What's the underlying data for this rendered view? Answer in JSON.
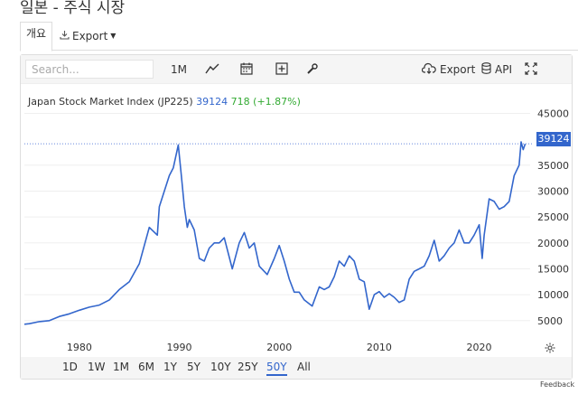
{
  "page": {
    "title": "일본 - 주식 시장"
  },
  "tabs": {
    "overview": "개요",
    "export": "Export"
  },
  "toolbar": {
    "search_placeholder": "Search...",
    "interval": "1M",
    "export": "Export",
    "api": "API"
  },
  "icons": {
    "line": "line-chart-icon",
    "calendar": "calendar-icon",
    "add": "plus-box-icon",
    "settings": "wrench-icon",
    "cloud": "cloud-download-icon",
    "db": "database-icon",
    "fullscreen": "fullscreen-icon",
    "gear": "gear-icon"
  },
  "legend": {
    "name": "Japan Stock Market Index (JP225)",
    "value": "39124",
    "change": "718 (+1.87%)"
  },
  "last_value_label": "39124",
  "range_buttons": [
    "1D",
    "1W",
    "1M",
    "6M",
    "1Y",
    "5Y",
    "10Y",
    "25Y",
    "50Y",
    "All"
  ],
  "active_range": "50Y",
  "feedback": "Feedback",
  "colors": {
    "line": "#3366cc",
    "change": "#33aa33"
  },
  "chart_data": {
    "type": "line",
    "series": [
      {
        "name": "Japan Stock Market Index (JP225)",
        "x": [
          1974.5,
          1975,
          1976,
          1977,
          1978,
          1979,
          1980,
          1981,
          1982,
          1983,
          1984,
          1985,
          1986,
          1987,
          1987.8,
          1988,
          1989,
          1989.4,
          1989.9,
          1990.2,
          1990.5,
          1990.8,
          1991,
          1991.5,
          1992,
          1992.5,
          1993,
          1993.5,
          1994,
          1994.5,
          1995.3,
          1996,
          1996.5,
          1997,
          1997.5,
          1998,
          1998.8,
          1999.5,
          2000,
          2000.5,
          2001,
          2001.5,
          2002,
          2002.5,
          2003.3,
          2004,
          2004.5,
          2005,
          2005.5,
          2006,
          2006.5,
          2007,
          2007.5,
          2008,
          2008.5,
          2009,
          2009.5,
          2010,
          2010.5,
          2011,
          2011.5,
          2012,
          2012.5,
          2013,
          2013.5,
          2014,
          2014.5,
          2015,
          2015.5,
          2016,
          2016.5,
          2017,
          2017.5,
          2018,
          2018.5,
          2019,
          2019.5,
          2020,
          2020.3,
          2020.5,
          2021,
          2021.5,
          2022,
          2022.5,
          2023,
          2023.5,
          2024,
          2024.2,
          2024.4,
          2024.6
        ],
        "y": [
          4300,
          4400,
          4800,
          5000,
          5800,
          6300,
          7000,
          7600,
          8000,
          9000,
          11000,
          12500,
          16000,
          23000,
          21500,
          27000,
          33000,
          34500,
          38900,
          33000,
          27000,
          23000,
          24500,
          22500,
          17000,
          16500,
          19000,
          20000,
          20000,
          21000,
          15000,
          20000,
          22000,
          19000,
          20000,
          15500,
          13900,
          17000,
          19500,
          16500,
          13000,
          10500,
          10500,
          9000,
          7800,
          11500,
          11000,
          11500,
          13500,
          16500,
          15500,
          17500,
          16500,
          13000,
          12500,
          7200,
          10000,
          10600,
          9500,
          10200,
          9500,
          8500,
          9000,
          13000,
          14500,
          15000,
          15500,
          17500,
          20500,
          16500,
          17500,
          19000,
          20000,
          22500,
          20000,
          20000,
          21500,
          23500,
          17000,
          21500,
          28500,
          28000,
          26500,
          27000,
          28000,
          33000,
          35000,
          39500,
          38000,
          39124
        ]
      }
    ],
    "x_ticks": [
      "1980",
      "1990",
      "2000",
      "2010",
      "2020"
    ],
    "y_ticks": [
      "5000",
      "10000",
      "15000",
      "20000",
      "25000",
      "30000",
      "35000",
      "45000"
    ],
    "xlim": [
      1974.5,
      2025.1
    ],
    "ylim": [
      2000,
      47000
    ],
    "last_value": 39124,
    "grid": "horizontal"
  }
}
